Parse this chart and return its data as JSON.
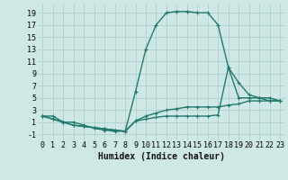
{
  "xlabel": "Humidex (Indice chaleur)",
  "background_color": "#cde8e5",
  "grid_color": "#aed0cc",
  "line_color": "#1e7a6e",
  "xlim": [
    -0.5,
    23.5
  ],
  "ylim": [
    -2.0,
    20.5
  ],
  "xticks": [
    0,
    1,
    2,
    3,
    4,
    5,
    6,
    7,
    8,
    9,
    10,
    11,
    12,
    13,
    14,
    15,
    16,
    17,
    18,
    19,
    20,
    21,
    22,
    23
  ],
  "yticks": [
    -1,
    1,
    3,
    5,
    7,
    9,
    11,
    13,
    15,
    17,
    19
  ],
  "line1_x": [
    0,
    1,
    2,
    3,
    4,
    5,
    6,
    7,
    8,
    9,
    10,
    11,
    12,
    13,
    14,
    15,
    16,
    17,
    18,
    19,
    20,
    21,
    22,
    23
  ],
  "line1_y": [
    2,
    2,
    1,
    1,
    0.5,
    0,
    -0.3,
    -0.5,
    -0.5,
    6,
    13,
    17,
    19,
    19.2,
    19.2,
    19,
    19,
    17,
    10,
    5,
    5,
    5,
    5,
    4.5
  ],
  "line2_x": [
    0,
    1,
    2,
    3,
    4,
    5,
    6,
    7,
    8,
    9,
    10,
    11,
    12,
    13,
    14,
    15,
    16,
    17,
    18,
    19,
    20,
    21,
    22,
    23
  ],
  "line2_y": [
    2,
    1.5,
    1,
    0.5,
    0.3,
    0.1,
    -0.1,
    -0.3,
    -0.5,
    1.2,
    1.5,
    1.8,
    2.0,
    2.0,
    2.0,
    2.0,
    2.0,
    2.2,
    10,
    7.5,
    5.5,
    5,
    4.5,
    4.5
  ],
  "line3_x": [
    0,
    1,
    2,
    3,
    4,
    5,
    6,
    7,
    8,
    9,
    10,
    11,
    12,
    13,
    14,
    15,
    16,
    17,
    18,
    19,
    20,
    21,
    22,
    23
  ],
  "line3_y": [
    2,
    1.5,
    1,
    0.5,
    0.3,
    0.1,
    -0.1,
    -0.3,
    -0.5,
    1.2,
    2.0,
    2.5,
    3.0,
    3.2,
    3.5,
    3.5,
    3.5,
    3.5,
    3.8,
    4.0,
    4.5,
    4.5,
    4.5,
    4.5
  ],
  "marker": "+",
  "markersize": 3.5,
  "linewidth": 1.0,
  "xlabel_fontsize": 7,
  "tick_fontsize": 6
}
